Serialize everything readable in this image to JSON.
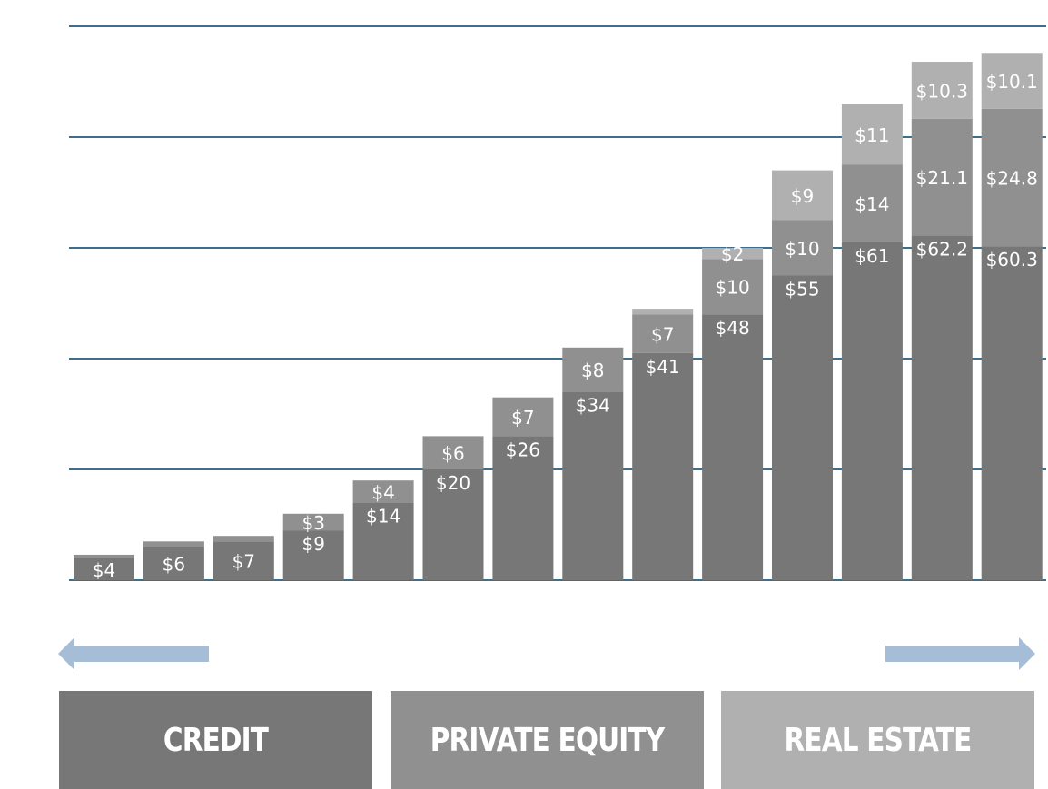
{
  "chart_data": {
    "type": "bar",
    "stacked": true,
    "categories": [
      "",
      "",
      "",
      "",
      "",
      "",
      "",
      "",
      "",
      "",
      "",
      "",
      "",
      ""
    ],
    "series": [
      {
        "values": [
          4,
          6,
          7,
          9,
          14,
          20,
          26,
          34,
          41,
          48,
          55,
          61,
          62.2,
          60.3
        ],
        "labels": [
          "$4",
          "$6",
          "$7",
          "$9",
          "$14",
          "$20",
          "$26",
          "$34",
          "$41",
          "$48",
          "$55",
          "$61",
          "$62.2",
          "$60.3"
        ]
      },
      {
        "values": [
          0.6,
          1,
          1,
          3,
          4,
          6,
          7,
          8,
          7,
          10,
          10,
          14,
          21.1,
          24.8
        ],
        "labels": [
          "",
          "",
          "",
          "$3",
          "$4",
          "$6",
          "$7",
          "$8",
          "$7",
          "$10",
          "$10",
          "$14",
          "$21.1",
          "$24.8"
        ]
      },
      {
        "values": [
          0,
          0,
          0,
          0,
          0,
          0,
          0,
          0,
          1,
          2,
          9,
          11,
          10.3,
          10.1
        ],
        "labels": [
          "",
          "",
          "",
          "",
          "",
          "",
          "",
          "",
          "",
          "$2",
          "$9",
          "$11",
          "$10.3",
          "$10.1"
        ]
      }
    ],
    "ylim": [
      0,
      100
    ],
    "gridlines": [
      0,
      20,
      40,
      60,
      80,
      100
    ],
    "grid": true,
    "legend": [
      "CREDIT",
      "PRIVATE EQUITY",
      "REAL ESTATE"
    ],
    "arrows": [
      "left",
      "right"
    ]
  },
  "colors": {
    "credit": "#777777",
    "private_equity": "#909090",
    "real_estate": "#b0b0b0",
    "gridline": "#3f6e8c",
    "arrow": "#a5bdd6",
    "label": "#ffffff"
  }
}
